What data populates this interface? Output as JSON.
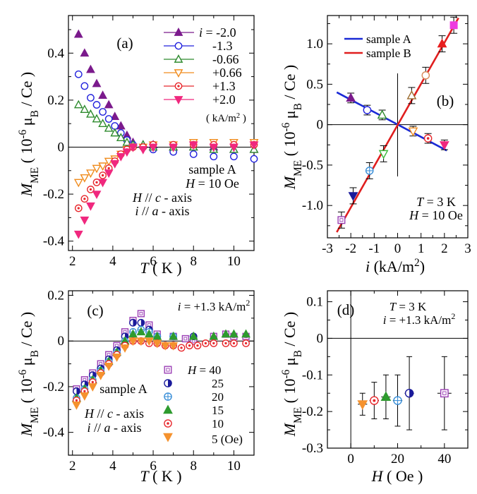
{
  "chart_data": [
    {
      "panel": "(a)",
      "type": "scatter",
      "xlabel": "T ( K )",
      "ylabel": "M_ME ( 10^-6 μB / Ce )",
      "xlim": [
        1.8,
        11
      ],
      "ylim": [
        -0.44,
        0.56
      ],
      "xticks": [
        2,
        4,
        6,
        8,
        10
      ],
      "yticks": [
        -0.4,
        -0.2,
        0,
        0.2,
        0.4
      ],
      "xtick_labels": [
        "2",
        "4",
        "6",
        "8",
        "10"
      ],
      "ytick_labels": [
        "-0.4",
        "-0.2",
        "0",
        "0.2",
        "0.4"
      ],
      "legend_title": "",
      "legend_unit": "( kA/m² )",
      "legend_first_prefix": "i = ",
      "annotations": [
        "sample A",
        "H = 10 Oe",
        "H // c - axis",
        "i // a - axis"
      ],
      "series": [
        {
          "name": "-2.0",
          "marker": "triangle-up-filled",
          "color": "#7b1a8c",
          "x": [
            2.3,
            2.6,
            2.9,
            3.2,
            3.5,
            3.8,
            4.1,
            4.4,
            4.7,
            5.0,
            5.5,
            6.0,
            7.0,
            8.0,
            9.0,
            10.0,
            11.0
          ],
          "y": [
            0.48,
            0.4,
            0.33,
            0.27,
            0.22,
            0.18,
            0.13,
            0.09,
            0.05,
            0.02,
            0.01,
            0.01,
            0.0,
            0.0,
            0.0,
            -0.01,
            -0.01
          ]
        },
        {
          "name": "-1.3",
          "marker": "circle-open",
          "color": "#2222dd",
          "x": [
            2.3,
            2.6,
            2.9,
            3.2,
            3.5,
            3.8,
            4.1,
            4.4,
            4.7,
            5.0,
            5.5,
            6.0,
            7.0,
            8.0,
            9.0,
            10.0,
            11.0
          ],
          "y": [
            0.31,
            0.26,
            0.21,
            0.18,
            0.15,
            0.12,
            0.09,
            0.06,
            0.03,
            0.01,
            0.0,
            -0.01,
            -0.02,
            -0.03,
            -0.04,
            -0.04,
            -0.05
          ]
        },
        {
          "name": "-0.66",
          "marker": "triangle-up-open",
          "color": "#2e8b2e",
          "x": [
            2.3,
            2.6,
            2.9,
            3.2,
            3.5,
            3.8,
            4.1,
            4.4,
            4.7,
            5.0,
            5.5,
            6.0,
            7.0,
            8.0,
            9.0,
            10.0,
            11.0
          ],
          "y": [
            0.18,
            0.16,
            0.14,
            0.12,
            0.1,
            0.08,
            0.06,
            0.04,
            0.02,
            0.01,
            0.01,
            0.0,
            0.0,
            0.0,
            -0.01,
            -0.01,
            -0.01
          ]
        },
        {
          "name": "+0.66",
          "marker": "triangle-down-open",
          "color": "#f08c1e",
          "x": [
            2.3,
            2.6,
            2.9,
            3.2,
            3.5,
            3.8,
            4.1,
            4.4,
            4.7,
            5.0,
            5.5,
            6.0,
            7.0,
            8.0,
            9.0,
            10.0,
            11.0
          ],
          "y": [
            -0.15,
            -0.13,
            -0.11,
            -0.09,
            -0.08,
            -0.06,
            -0.05,
            -0.03,
            -0.01,
            0.0,
            0.0,
            0.01,
            0.01,
            0.02,
            0.02,
            0.02,
            0.02
          ]
        },
        {
          "name": "+1.3",
          "marker": "circle-dot",
          "color": "#e8282d",
          "x": [
            2.3,
            2.6,
            2.9,
            3.2,
            3.5,
            3.8,
            4.1,
            4.4,
            4.7,
            5.0,
            5.5,
            6.0,
            7.0,
            8.0,
            9.0,
            10.0,
            11.0
          ],
          "y": [
            -0.26,
            -0.22,
            -0.18,
            -0.15,
            -0.12,
            -0.09,
            -0.06,
            -0.03,
            -0.01,
            0.0,
            0.0,
            0.01,
            0.01,
            0.01,
            0.01,
            0.01,
            0.01
          ]
        },
        {
          "name": "+2.0",
          "marker": "triangle-down-filled",
          "color": "#f0287e",
          "x": [
            2.3,
            2.6,
            2.9,
            3.2,
            3.5,
            3.8,
            4.1,
            4.4,
            4.7,
            5.0,
            5.5,
            6.0,
            7.0,
            8.0,
            9.0,
            10.0,
            11.0
          ],
          "y": [
            -0.37,
            -0.31,
            -0.25,
            -0.2,
            -0.15,
            -0.11,
            -0.07,
            -0.04,
            -0.02,
            0.0,
            -0.01,
            0.0,
            0.0,
            0.01,
            0.0,
            0.0,
            0.01
          ]
        }
      ]
    },
    {
      "panel": "(b)",
      "type": "scatter",
      "xlabel": "i (kA/m²)",
      "ylabel": "M_ME ( 10^-6 μB / Ce )",
      "xlim": [
        -3,
        3
      ],
      "ylim": [
        -1.4,
        1.35
      ],
      "xticks": [
        -3,
        -2,
        -1,
        0,
        1,
        2,
        3
      ],
      "yticks": [
        -1.0,
        -0.5,
        0,
        0.5,
        1.0
      ],
      "xtick_labels": [
        "-3",
        "-2",
        "-1",
        "0",
        "1",
        "2",
        "3"
      ],
      "ytick_labels": [
        "-1.0",
        "-0.5",
        "0",
        "0.5",
        "1.0"
      ],
      "annotations": [
        "T = 3 K",
        "H = 10 Oe"
      ],
      "series": [
        {
          "name": "sample A",
          "line_color": "#1a2ad6",
          "fit_x": [
            -2.6,
            2.1
          ],
          "fit_y": [
            0.4,
            -0.32
          ],
          "points": [
            {
              "x": -2.0,
              "y": 0.33,
              "err": 0.06,
              "marker": "triangle-up-filled",
              "color": "#7b1a8c"
            },
            {
              "x": -1.3,
              "y": 0.18,
              "err": 0.06,
              "marker": "circle-open",
              "color": "#2222dd"
            },
            {
              "x": -0.66,
              "y": 0.12,
              "err": 0.06,
              "marker": "triangle-up-open",
              "color": "#2e8b2e"
            },
            {
              "x": 0.66,
              "y": -0.08,
              "err": 0.06,
              "marker": "triangle-down-open",
              "color": "#f08c1e"
            },
            {
              "x": 1.3,
              "y": -0.17,
              "err": 0.06,
              "marker": "circle-dot",
              "color": "#e8282d"
            },
            {
              "x": 2.0,
              "y": -0.25,
              "err": 0.06,
              "marker": "triangle-down-filled",
              "color": "#f0287e"
            }
          ]
        },
        {
          "name": "sample B",
          "line_color": "#e01e1e",
          "fit_x": [
            -2.6,
            2.6
          ],
          "fit_y": [
            -1.33,
            1.32
          ],
          "points": [
            {
              "x": -2.4,
              "y": -1.18,
              "err": 0.1,
              "marker": "square-open",
              "color": "#9b3fb5"
            },
            {
              "x": -1.9,
              "y": -0.88,
              "err": 0.1,
              "marker": "triangle-down-filled",
              "color": "#1a1a9b"
            },
            {
              "x": -1.2,
              "y": -0.57,
              "err": 0.1,
              "marker": "circle-plus",
              "color": "#3a8fd8"
            },
            {
              "x": -0.6,
              "y": -0.36,
              "err": 0.1,
              "marker": "triangle-down-open",
              "color": "#3ab83a"
            },
            {
              "x": 0.6,
              "y": 0.36,
              "err": 0.1,
              "marker": "triangle-up-open",
              "color": "#9b6b2e"
            },
            {
              "x": 1.2,
              "y": 0.61,
              "err": 0.1,
              "marker": "circle-open",
              "color": "#d88a5a"
            },
            {
              "x": 1.9,
              "y": 1.0,
              "err": 0.1,
              "marker": "triangle-up-filled",
              "color": "#e81e1e"
            },
            {
              "x": 2.4,
              "y": 1.23,
              "err": 0.1,
              "marker": "square-filled",
              "color": "#ee3ae0"
            }
          ]
        }
      ]
    },
    {
      "panel": "(c)",
      "type": "scatter",
      "xlabel": "T ( K )",
      "ylabel": "M_ME ( 10^-6 μB / Ce )",
      "xlim": [
        1.8,
        11
      ],
      "ylim": [
        -0.5,
        0.22
      ],
      "xticks": [
        2,
        4,
        6,
        8,
        10
      ],
      "yticks": [
        -0.4,
        -0.2,
        0,
        0.2
      ],
      "xtick_labels": [
        "2",
        "4",
        "6",
        "8",
        "10"
      ],
      "ytick_labels": [
        "-0.4",
        "-0.2",
        "0",
        "0.2"
      ],
      "annotations": [
        "i = +1.3 kA/m²",
        "sample A",
        "H // c - axis",
        "i // a - axis"
      ],
      "legend_first_prefix": "H = ",
      "legend_last_suffix": " (Oe)",
      "series": [
        {
          "name": "40",
          "marker": "square-open",
          "color": "#9b3fb5",
          "x": [
            2.2,
            2.6,
            3.0,
            3.4,
            3.8,
            4.2,
            4.6,
            5.0,
            5.4,
            5.8,
            6.2,
            7.0,
            7.6,
            8.0,
            9.0,
            9.6,
            10.0,
            10.6
          ],
          "y": [
            -0.21,
            -0.17,
            -0.14,
            -0.1,
            -0.06,
            -0.02,
            0.04,
            0.09,
            0.12,
            0.07,
            0.03,
            0.02,
            0.01,
            0.0,
            0.02,
            0.03,
            0.02,
            0.02
          ]
        },
        {
          "name": "25",
          "marker": "circle-half",
          "color": "#1a1a9b",
          "x": [
            2.2,
            2.6,
            3.0,
            3.4,
            3.8,
            4.2,
            4.6,
            5.0,
            5.4,
            5.8,
            6.2,
            7.0,
            8.0
          ],
          "y": [
            -0.22,
            -0.19,
            -0.15,
            -0.12,
            -0.08,
            -0.04,
            0.02,
            0.08,
            0.08,
            0.05,
            0.02,
            0.02,
            0.02
          ]
        },
        {
          "name": "20",
          "marker": "circle-plus",
          "color": "#3a8fd8",
          "x": [
            2.2,
            2.6,
            3.0,
            3.4,
            3.8,
            4.2,
            4.6,
            5.0,
            5.4,
            5.8,
            6.2,
            7.0
          ],
          "y": [
            -0.25,
            -0.21,
            -0.17,
            -0.13,
            -0.09,
            -0.05,
            0.0,
            0.04,
            0.05,
            0.04,
            0.02,
            0.02
          ]
        },
        {
          "name": "15",
          "marker": "triangle-up-filled",
          "color": "#2e9b2e",
          "x": [
            2.2,
            2.6,
            3.0,
            3.4,
            3.8,
            4.2,
            4.6,
            5.0,
            5.4,
            5.8,
            6.2,
            7.0,
            8.0,
            9.0,
            9.6,
            10.0,
            10.6
          ],
          "y": [
            -0.25,
            -0.21,
            -0.17,
            -0.13,
            -0.09,
            -0.05,
            0.0,
            0.03,
            0.04,
            0.03,
            0.02,
            0.02,
            0.02,
            0.02,
            0.03,
            0.03,
            0.03
          ]
        },
        {
          "name": "10",
          "marker": "circle-dot",
          "color": "#e8282d",
          "x": [
            2.2,
            2.6,
            3.0,
            3.4,
            3.8,
            4.2,
            4.6,
            5.0,
            5.4,
            5.8,
            6.2,
            6.6,
            7.0,
            7.4,
            7.8,
            8.2,
            8.6,
            9.0,
            9.6,
            10.0,
            10.6
          ],
          "y": [
            -0.26,
            -0.22,
            -0.18,
            -0.14,
            -0.1,
            -0.06,
            -0.02,
            0.0,
            0.0,
            -0.01,
            -0.01,
            -0.02,
            -0.02,
            -0.03,
            -0.02,
            -0.02,
            -0.01,
            -0.01,
            -0.01,
            -0.01,
            -0.01
          ]
        },
        {
          "name": "5",
          "marker": "triangle-down-filled",
          "color": "#f5922e",
          "x": [
            2.2,
            2.6,
            3.0,
            3.4,
            3.8,
            4.2,
            4.6,
            5.0,
            5.4,
            5.8,
            6.2,
            6.6,
            7.0
          ],
          "y": [
            -0.28,
            -0.24,
            -0.2,
            -0.15,
            -0.11,
            -0.07,
            -0.03,
            0.0,
            0.0,
            0.0,
            -0.01,
            -0.02,
            -0.02
          ]
        }
      ]
    },
    {
      "panel": "(d)",
      "type": "scatter",
      "xlabel": "H ( Oe )",
      "ylabel": "M_ME ( 10^-6 μB / Ce )",
      "xlim": [
        -10,
        50
      ],
      "ylim": [
        -0.3,
        0.13
      ],
      "xticks": [
        0,
        20,
        40
      ],
      "yticks": [
        -0.3,
        -0.2,
        -0.1,
        0,
        0.1
      ],
      "xtick_labels": [
        "0",
        "20",
        "40"
      ],
      "ytick_labels": [
        "-0.3",
        "-0.2",
        "-0.1",
        "0",
        "0.1"
      ],
      "annotations": [
        "T = 3 K",
        "i = +1.3 kA/m²"
      ],
      "points": [
        {
          "x": 5,
          "y": -0.18,
          "err": 0.03,
          "xerr": 2,
          "marker": "triangle-down-filled",
          "color": "#f5922e"
        },
        {
          "x": 10,
          "y": -0.17,
          "err": 0.05,
          "xerr": 2,
          "marker": "circle-dot",
          "color": "#e8282d"
        },
        {
          "x": 15,
          "y": -0.16,
          "err": 0.06,
          "xerr": 2,
          "marker": "triangle-up-filled",
          "color": "#2e9b2e"
        },
        {
          "x": 20,
          "y": -0.17,
          "err": 0.07,
          "xerr": 2,
          "marker": "circle-plus",
          "color": "#3a8fd8"
        },
        {
          "x": 25,
          "y": -0.15,
          "err": 0.1,
          "xerr": 2,
          "marker": "circle-half",
          "color": "#1a1a9b"
        },
        {
          "x": 40,
          "y": -0.15,
          "err": 0.1,
          "xerr": 3,
          "marker": "square-open",
          "color": "#9b3fb5"
        }
      ]
    }
  ]
}
